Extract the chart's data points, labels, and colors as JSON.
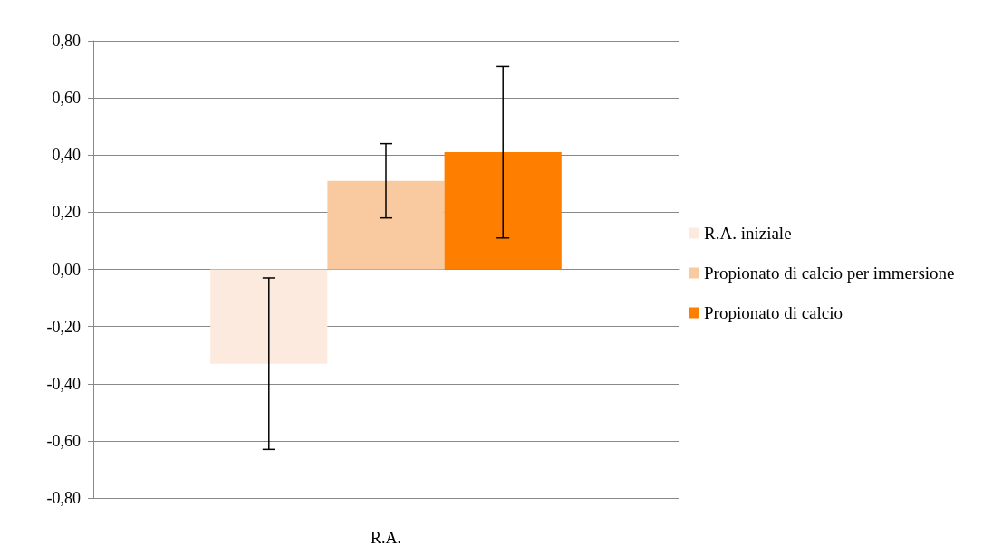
{
  "chart_data": {
    "type": "bar",
    "categories": [
      "R.A."
    ],
    "series": [
      {
        "name": "R.A. iniziale",
        "color": "#fdeadf",
        "values": [
          -0.33
        ],
        "errors": [
          0.3
        ]
      },
      {
        "name": "Propionato di calcio per immersione",
        "color": "#f9c9a0",
        "values": [
          0.31
        ],
        "errors": [
          0.13
        ]
      },
      {
        "name": "Propionato di calcio",
        "color": "#fe7f00",
        "values": [
          0.41
        ],
        "errors": [
          0.3
        ]
      }
    ],
    "ylim": [
      -0.8,
      0.8
    ],
    "yticks": [
      {
        "value": -0.8,
        "label": "-0,80"
      },
      {
        "value": -0.6,
        "label": "-0,60"
      },
      {
        "value": -0.4,
        "label": "-0,40"
      },
      {
        "value": -0.2,
        "label": "-0,20"
      },
      {
        "value": 0,
        "label": "0,00"
      },
      {
        "value": 0.2,
        "label": "0,20"
      },
      {
        "value": 0.4,
        "label": "0,40"
      },
      {
        "value": 0.6,
        "label": "0,60"
      },
      {
        "value": 0.8,
        "label": "0,80"
      }
    ],
    "grid": "y",
    "legend": "right"
  }
}
